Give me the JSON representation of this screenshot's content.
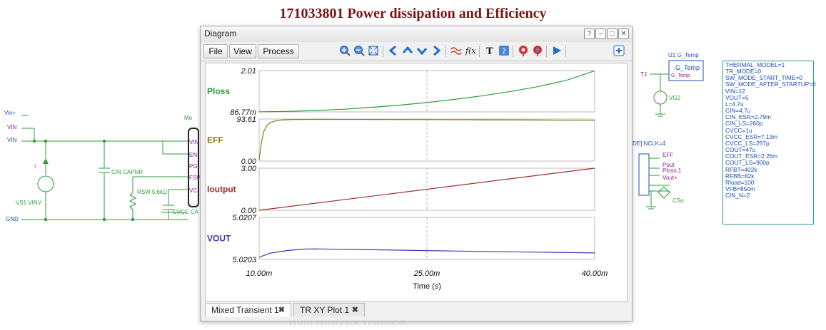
{
  "page_title": "171033801 Power dissipation and Efficiency",
  "watermark": "from Analysis/Transient",
  "schematic": {
    "left_labels": {
      "vin_plus": "Vin+",
      "vin_a": "VIN",
      "vin_b": "VIN",
      "gnd": "GND"
    },
    "source_label": "VS1 VINV",
    "current_marker": "I",
    "cin_label": "CIN CAPNR",
    "rsw_label": "RSW 5.6kΩ",
    "cvcc_label": "CVCC CA",
    "module_ref": "Mo",
    "pins": [
      "VIN",
      "EN",
      "PG",
      "FSW",
      "VC"
    ],
    "u1_ref": "U1 G_Temp",
    "gtemp_block_line1": "G_Temp",
    "gtemp_block_line2": "G_Temp",
    "tj_label": "TJ",
    "vg2_label": "VG2",
    "nclk_label": "DE] NCLK=4",
    "eff_label": "EFF",
    "pout_label": "Pout",
    "ploss_label": "Ploss:1",
    "vout_label": "Vout+",
    "cso_label": "CSo"
  },
  "parameters": [
    "THERMAL_MODEL=1",
    "TR_MODE=0",
    "SW_MODE_START_TIME=0",
    "SW_MODE_AFTER_STARTUP=0",
    "VIN=12",
    "VOUT=5",
    "L=4.7u",
    "CIN=4.7u",
    "CIN_ESR=2.79m",
    "CIN_LS=260p",
    "CVCC=1u",
    "CVCC_ESR=7.13m",
    "CVCC_LS=257p",
    "COUT=47u",
    "COUT_ESR=2.26m",
    "COUT_LS=900p",
    "RFBT=402k",
    "RFBB=82k",
    "Rload=100",
    "VFB=850m",
    "CIN_N=2"
  ],
  "window": {
    "title": "Diagram",
    "controls": {
      "help": "?",
      "minimize": "–",
      "maximize": "□",
      "close": "✕"
    },
    "menu": {
      "file": "File",
      "view": "View",
      "process": "Process"
    },
    "toolbar_icons": [
      "zoom-in-icon",
      "zoom-out-icon",
      "fit-icon",
      "arrow-left-icon",
      "arrow-up-icon",
      "arrow-down-icon",
      "arrow-right-icon",
      "waveform-icon",
      "function-icon",
      "text-icon",
      "info-icon",
      "marker-icon",
      "marker2-icon",
      "play-icon",
      "expand-icon"
    ],
    "tabs": [
      {
        "label": "Mixed Transient 1"
      },
      {
        "label": "TR XY Plot 1"
      }
    ]
  },
  "chart_data": {
    "type": "line",
    "xlabel": "Time (s)",
    "x_ticks": [
      "10.00m",
      "25.00m",
      "40.00m"
    ],
    "xlim": [
      0.01,
      0.04
    ],
    "cursor_x": 0.025,
    "grid": false,
    "panels": [
      {
        "name": "Ploss",
        "color": "#2e9b3a",
        "ylim": [
          0.08677,
          2.01
        ],
        "y_ticks": [
          "2.01",
          "86.77m"
        ],
        "x": [
          0.01,
          0.0125,
          0.015,
          0.0175,
          0.02,
          0.0225,
          0.025,
          0.0275,
          0.03,
          0.0325,
          0.035,
          0.0375,
          0.04
        ],
        "y": [
          0.09,
          0.11,
          0.15,
          0.21,
          0.3,
          0.4,
          0.52,
          0.67,
          0.84,
          1.04,
          1.27,
          1.56,
          2.0
        ]
      },
      {
        "name": "EFF",
        "color": "#8a7a14",
        "ylim": [
          0,
          93.61
        ],
        "y_ticks": [
          "93.61",
          "0.00"
        ],
        "x": [
          0.01,
          0.0102,
          0.0104,
          0.0107,
          0.011,
          0.0115,
          0.012,
          0.013,
          0.015,
          0.02,
          0.025,
          0.03,
          0.035,
          0.04
        ],
        "y": [
          3,
          40,
          65,
          80,
          86,
          89.5,
          91.5,
          92.6,
          92.8,
          92.6,
          92.3,
          91.9,
          91.4,
          90.8
        ]
      },
      {
        "name": "Ioutput",
        "color": "#a02c2c",
        "ylim": [
          0,
          3.0
        ],
        "y_ticks": [
          "3.00",
          "0.00"
        ],
        "x": [
          0.01,
          0.04
        ],
        "y": [
          0.0,
          3.0
        ]
      },
      {
        "name": "VOUT",
        "color": "#3a3ab0",
        "ylim": [
          5.0203,
          5.0207
        ],
        "y_ticks": [
          "5.0207",
          "5.0203"
        ],
        "x": [
          0.01,
          0.011,
          0.0125,
          0.014,
          0.015,
          0.0175,
          0.02,
          0.025,
          0.03,
          0.035,
          0.04
        ],
        "y": [
          5.02032,
          5.02036,
          5.020385,
          5.020398,
          5.0204,
          5.020396,
          5.020392,
          5.020384,
          5.020376,
          5.020369,
          5.020362
        ]
      }
    ]
  }
}
